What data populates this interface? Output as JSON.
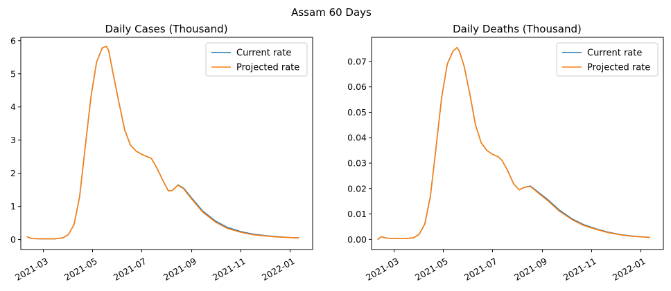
{
  "figure": {
    "suptitle": "Assam 60 Days"
  },
  "chart_data": [
    {
      "type": "line",
      "title": "Daily Cases (Thousand)",
      "xlabel": "",
      "ylabel": "",
      "x_axis_type": "date",
      "xlim": [
        "2021-02-01",
        "2022-01-29"
      ],
      "ylim": [
        -0.3,
        6.1
      ],
      "yticks": [
        0,
        1,
        2,
        3,
        4,
        5,
        6
      ],
      "ytick_labels": [
        "0",
        "1",
        "2",
        "3",
        "4",
        "5",
        "6"
      ],
      "xticks": [
        "2021-03-01",
        "2021-05-01",
        "2021-07-01",
        "2021-09-01",
        "2021-11-01",
        "2022-01-01"
      ],
      "xtick_labels": [
        "2021-03",
        "2021-05",
        "2021-07",
        "2021-09",
        "2021-11",
        "2022-01"
      ],
      "grid": false,
      "legend": "top-right",
      "series": [
        {
          "name": "Current rate",
          "color": "#1f77b4",
          "x": [
            "2021-02-09",
            "2021-02-15",
            "2021-03-01",
            "2021-03-15",
            "2021-03-25",
            "2021-04-01",
            "2021-04-08",
            "2021-04-15",
            "2021-04-22",
            "2021-04-29",
            "2021-05-06",
            "2021-05-13",
            "2021-05-18",
            "2021-05-21",
            "2021-05-27",
            "2021-06-03",
            "2021-06-10",
            "2021-06-17",
            "2021-06-24",
            "2021-07-01",
            "2021-07-08",
            "2021-07-13",
            "2021-07-20",
            "2021-07-27",
            "2021-08-03",
            "2021-08-08",
            "2021-08-15",
            "2021-08-22",
            "2021-09-01",
            "2021-09-15",
            "2021-10-01",
            "2021-10-15",
            "2021-11-01",
            "2021-11-15",
            "2021-12-01",
            "2021-12-15",
            "2022-01-01",
            "2022-01-12"
          ],
          "y": [
            0.08,
            0.03,
            0.02,
            0.02,
            0.05,
            0.15,
            0.45,
            1.3,
            2.8,
            4.3,
            5.35,
            5.78,
            5.83,
            5.7,
            4.95,
            4.1,
            3.3,
            2.85,
            2.67,
            2.57,
            2.5,
            2.45,
            2.15,
            1.8,
            1.47,
            1.48,
            1.65,
            1.55,
            1.25,
            0.85,
            0.55,
            0.37,
            0.24,
            0.17,
            0.12,
            0.09,
            0.06,
            0.05
          ]
        },
        {
          "name": "Projected rate",
          "color": "#ff7f0e",
          "x": [
            "2021-02-09",
            "2021-02-15",
            "2021-03-01",
            "2021-03-15",
            "2021-03-25",
            "2021-04-01",
            "2021-04-08",
            "2021-04-15",
            "2021-04-22",
            "2021-04-29",
            "2021-05-06",
            "2021-05-13",
            "2021-05-18",
            "2021-05-21",
            "2021-05-27",
            "2021-06-03",
            "2021-06-10",
            "2021-06-17",
            "2021-06-24",
            "2021-07-01",
            "2021-07-08",
            "2021-07-13",
            "2021-07-20",
            "2021-07-27",
            "2021-08-03",
            "2021-08-08",
            "2021-08-15",
            "2021-08-22",
            "2021-09-01",
            "2021-09-15",
            "2021-10-01",
            "2021-10-15",
            "2021-11-01",
            "2021-11-15",
            "2021-12-01",
            "2021-12-15",
            "2022-01-01",
            "2022-01-12"
          ],
          "y": [
            0.08,
            0.03,
            0.02,
            0.02,
            0.05,
            0.15,
            0.45,
            1.3,
            2.8,
            4.3,
            5.35,
            5.78,
            5.83,
            5.7,
            4.95,
            4.1,
            3.3,
            2.85,
            2.67,
            2.57,
            2.5,
            2.45,
            2.15,
            1.8,
            1.47,
            1.48,
            1.64,
            1.53,
            1.22,
            0.82,
            0.52,
            0.34,
            0.22,
            0.15,
            0.11,
            0.08,
            0.06,
            0.05
          ]
        }
      ]
    },
    {
      "type": "line",
      "title": "Daily Deaths (Thousand)",
      "xlabel": "",
      "ylabel": "",
      "x_axis_type": "date",
      "xlim": [
        "2021-02-01",
        "2022-01-29"
      ],
      "ylim": [
        -0.004,
        0.0795
      ],
      "yticks": [
        0,
        0.01,
        0.02,
        0.03,
        0.04,
        0.05,
        0.06,
        0.07
      ],
      "ytick_labels": [
        "0.00",
        "0.01",
        "0.02",
        "0.03",
        "0.04",
        "0.05",
        "0.06",
        "0.07"
      ],
      "xticks": [
        "2021-03-01",
        "2021-05-01",
        "2021-07-01",
        "2021-09-01",
        "2021-11-01",
        "2022-01-01"
      ],
      "xtick_labels": [
        "2021-03",
        "2021-05",
        "2021-07",
        "2021-09",
        "2021-11",
        "2022-01"
      ],
      "grid": false,
      "legend": "top-right",
      "series": [
        {
          "name": "Current rate",
          "color": "#1f77b4",
          "x": [
            "2021-02-09",
            "2021-02-13",
            "2021-02-20",
            "2021-03-01",
            "2021-03-15",
            "2021-03-25",
            "2021-04-01",
            "2021-04-08",
            "2021-04-15",
            "2021-04-22",
            "2021-04-29",
            "2021-05-06",
            "2021-05-13",
            "2021-05-18",
            "2021-05-21",
            "2021-05-27",
            "2021-06-03",
            "2021-06-10",
            "2021-06-17",
            "2021-06-24",
            "2021-07-01",
            "2021-07-08",
            "2021-07-13",
            "2021-07-20",
            "2021-07-27",
            "2021-08-03",
            "2021-08-10",
            "2021-08-17",
            "2021-08-25",
            "2021-09-08",
            "2021-09-22",
            "2021-10-08",
            "2021-10-22",
            "2021-11-08",
            "2021-11-22",
            "2021-12-08",
            "2021-12-22",
            "2022-01-12"
          ],
          "y": [
            0.0,
            0.001,
            0.0005,
            0.0003,
            0.0003,
            0.0006,
            0.002,
            0.006,
            0.017,
            0.036,
            0.056,
            0.069,
            0.074,
            0.0755,
            0.074,
            0.068,
            0.057,
            0.045,
            0.038,
            0.035,
            0.0335,
            0.0325,
            0.031,
            0.027,
            0.022,
            0.0195,
            0.0205,
            0.021,
            0.019,
            0.0155,
            0.0115,
            0.008,
            0.0058,
            0.004,
            0.0028,
            0.0018,
            0.0013,
            0.0008
          ]
        },
        {
          "name": "Projected rate",
          "color": "#ff7f0e",
          "x": [
            "2021-02-09",
            "2021-02-13",
            "2021-02-20",
            "2021-03-01",
            "2021-03-15",
            "2021-03-25",
            "2021-04-01",
            "2021-04-08",
            "2021-04-15",
            "2021-04-22",
            "2021-04-29",
            "2021-05-06",
            "2021-05-13",
            "2021-05-18",
            "2021-05-21",
            "2021-05-27",
            "2021-06-03",
            "2021-06-10",
            "2021-06-17",
            "2021-06-24",
            "2021-07-01",
            "2021-07-08",
            "2021-07-13",
            "2021-07-20",
            "2021-07-27",
            "2021-08-03",
            "2021-08-10",
            "2021-08-17",
            "2021-08-25",
            "2021-09-08",
            "2021-09-22",
            "2021-10-08",
            "2021-10-22",
            "2021-11-08",
            "2021-11-22",
            "2021-12-08",
            "2021-12-22",
            "2022-01-12"
          ],
          "y": [
            0.0,
            0.001,
            0.0005,
            0.0003,
            0.0003,
            0.0006,
            0.002,
            0.006,
            0.017,
            0.036,
            0.056,
            0.069,
            0.074,
            0.0755,
            0.074,
            0.068,
            0.057,
            0.045,
            0.038,
            0.035,
            0.0335,
            0.0325,
            0.031,
            0.027,
            0.022,
            0.0195,
            0.0205,
            0.0208,
            0.0187,
            0.0151,
            0.0111,
            0.0077,
            0.0055,
            0.0038,
            0.0026,
            0.0017,
            0.0012,
            0.0008
          ]
        }
      ]
    }
  ]
}
